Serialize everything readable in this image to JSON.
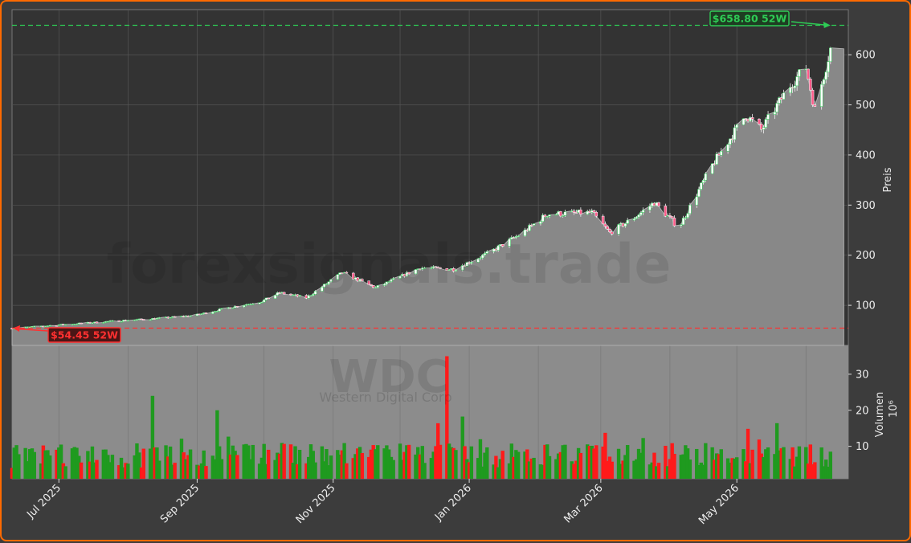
{
  "chart_data": {
    "type": "candlestick",
    "ticker": "WDC",
    "company": "Western Digital Corp",
    "watermark": "forexsignals.trade",
    "price_axis_label": "Preis",
    "volume_axis_label": "Volumen",
    "volume_unit": "10⁶",
    "price_ticks": [
      100,
      200,
      300,
      400,
      500,
      600
    ],
    "price_ylim": [
      20,
      690
    ],
    "volume_ticks": [
      10,
      20,
      30
    ],
    "volume_ylim": [
      1,
      38
    ],
    "date_ticks": [
      "Jul 2025",
      "Sep 2025",
      "Nov 2025",
      "Jan 2026",
      "Mar 2026",
      "May 2026"
    ],
    "annotations": {
      "high_52w": {
        "value": 658.8,
        "label": "$658.80 52W",
        "color": "#2ecc55"
      },
      "low_52w": {
        "value": 54.45,
        "label": "$54.45 52W",
        "color": "#ff3030"
      }
    },
    "series_anchors": [
      {
        "date": "2025-06-10",
        "close": 54
      },
      {
        "date": "2025-07-01",
        "close": 61
      },
      {
        "date": "2025-07-31",
        "close": 70
      },
      {
        "date": "2025-08-15",
        "close": 74
      },
      {
        "date": "2025-08-31",
        "close": 80
      },
      {
        "date": "2025-09-15",
        "close": 95
      },
      {
        "date": "2025-09-30",
        "close": 108
      },
      {
        "date": "2025-10-08",
        "close": 125
      },
      {
        "date": "2025-10-20",
        "close": 115
      },
      {
        "date": "2025-11-05",
        "close": 165
      },
      {
        "date": "2025-11-20",
        "close": 135
      },
      {
        "date": "2025-12-10",
        "close": 175
      },
      {
        "date": "2025-12-25",
        "close": 172
      },
      {
        "date": "2026-01-10",
        "close": 205
      },
      {
        "date": "2026-01-25",
        "close": 245
      },
      {
        "date": "2026-02-05",
        "close": 282
      },
      {
        "date": "2026-02-25",
        "close": 285
      },
      {
        "date": "2026-03-05",
        "close": 245
      },
      {
        "date": "2026-03-15",
        "close": 272
      },
      {
        "date": "2026-03-25",
        "close": 305
      },
      {
        "date": "2026-04-05",
        "close": 255
      },
      {
        "date": "2026-04-20",
        "close": 380
      },
      {
        "date": "2026-05-05",
        "close": 480
      },
      {
        "date": "2026-05-12",
        "close": 450
      },
      {
        "date": "2026-05-25",
        "close": 540
      },
      {
        "date": "2026-06-01",
        "close": 575
      },
      {
        "date": "2026-06-05",
        "close": 490
      },
      {
        "date": "2026-06-12",
        "close": 612
      }
    ]
  }
}
